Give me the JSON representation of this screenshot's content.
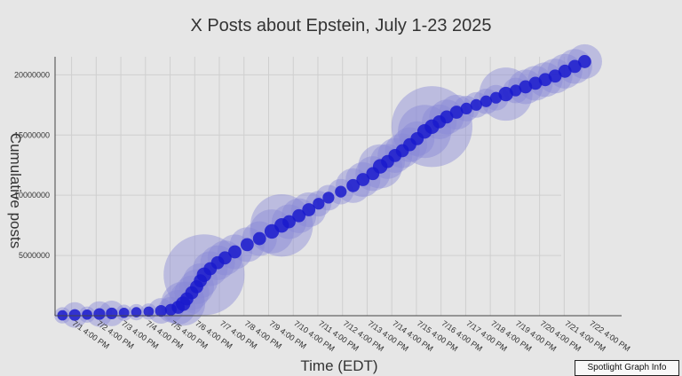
{
  "chart_data": {
    "type": "scatter",
    "title": "X Posts about Epstein, July 1-23 2025",
    "xlabel": "Time (EDT)",
    "ylabel": "Cumulative posts",
    "y_ticks": [
      5000000,
      10000000,
      15000000,
      20000000
    ],
    "y_tick_labels": [
      "5000000",
      "10000000",
      "15000000",
      "20000000"
    ],
    "x_tick_labels": [
      "7/1 4:00 PM",
      "7/2 4:00 PM",
      "7/3 4:00 PM",
      "7/4 4:00 PM",
      "7/5 4:00 PM",
      "7/6 4:00 PM",
      "7/7 4:00 PM",
      "7/8 4:00 PM",
      "7/9 4:00 PM",
      "7/10 4:00 PM",
      "7/11 4:00 PM",
      "7/12 4:00 PM",
      "7/13 4:00 PM",
      "7/14 4:00 PM",
      "7/15 4:00 PM",
      "7/16 4:00 PM",
      "7/17 4:00 PM",
      "7/18 4:00 PM",
      "7/19 4:00 PM",
      "7/20 4:00 PM",
      "7/21 4:00 PM",
      "7/22 4:00 PM"
    ],
    "x_range_days": [
      0,
      23
    ],
    "ylim": [
      0,
      21500000
    ],
    "grid": true,
    "marker_color": "#1a1acc",
    "halo_color": "#8a8ad6",
    "points": [
      {
        "t": 0.3,
        "y": 30000,
        "s": 1
      },
      {
        "t": 0.8,
        "y": 60000,
        "s": 2
      },
      {
        "t": 1.3,
        "y": 90000,
        "s": 1
      },
      {
        "t": 1.8,
        "y": 140000,
        "s": 2
      },
      {
        "t": 2.3,
        "y": 190000,
        "s": 2
      },
      {
        "t": 2.8,
        "y": 240000,
        "s": 1
      },
      {
        "t": 3.3,
        "y": 290000,
        "s": 1
      },
      {
        "t": 3.8,
        "y": 340000,
        "s": 1
      },
      {
        "t": 4.3,
        "y": 400000,
        "s": 2
      },
      {
        "t": 4.7,
        "y": 500000,
        "s": 2
      },
      {
        "t": 5.0,
        "y": 700000,
        "s": 3
      },
      {
        "t": 5.2,
        "y": 1000000,
        "s": 4
      },
      {
        "t": 5.35,
        "y": 1400000,
        "s": 3
      },
      {
        "t": 5.55,
        "y": 1900000,
        "s": 3
      },
      {
        "t": 5.75,
        "y": 2400000,
        "s": 3
      },
      {
        "t": 5.9,
        "y": 2900000,
        "s": 3
      },
      {
        "t": 6.05,
        "y": 3400000,
        "s": 8
      },
      {
        "t": 6.3,
        "y": 3900000,
        "s": 3
      },
      {
        "t": 6.6,
        "y": 4400000,
        "s": 3
      },
      {
        "t": 6.9,
        "y": 4800000,
        "s": 3
      },
      {
        "t": 7.3,
        "y": 5300000,
        "s": 3
      },
      {
        "t": 7.8,
        "y": 5900000,
        "s": 3
      },
      {
        "t": 8.3,
        "y": 6400000,
        "s": 3
      },
      {
        "t": 8.8,
        "y": 7000000,
        "s": 4
      },
      {
        "t": 9.2,
        "y": 7500000,
        "s": 6
      },
      {
        "t": 9.5,
        "y": 7800000,
        "s": 3
      },
      {
        "t": 9.9,
        "y": 8300000,
        "s": 3
      },
      {
        "t": 10.3,
        "y": 8800000,
        "s": 3
      },
      {
        "t": 10.7,
        "y": 9300000,
        "s": 2
      },
      {
        "t": 11.1,
        "y": 9800000,
        "s": 2
      },
      {
        "t": 11.6,
        "y": 10300000,
        "s": 2
      },
      {
        "t": 12.1,
        "y": 10800000,
        "s": 3
      },
      {
        "t": 12.5,
        "y": 11300000,
        "s": 3
      },
      {
        "t": 12.9,
        "y": 11800000,
        "s": 3
      },
      {
        "t": 13.2,
        "y": 12400000,
        "s": 4
      },
      {
        "t": 13.5,
        "y": 12800000,
        "s": 3
      },
      {
        "t": 13.8,
        "y": 13300000,
        "s": 3
      },
      {
        "t": 14.1,
        "y": 13700000,
        "s": 3
      },
      {
        "t": 14.4,
        "y": 14200000,
        "s": 3
      },
      {
        "t": 14.7,
        "y": 14700000,
        "s": 3
      },
      {
        "t": 15.0,
        "y": 15300000,
        "s": 5
      },
      {
        "t": 15.3,
        "y": 15700000,
        "s": 8
      },
      {
        "t": 15.6,
        "y": 16100000,
        "s": 3
      },
      {
        "t": 15.9,
        "y": 16500000,
        "s": 3
      },
      {
        "t": 16.3,
        "y": 16900000,
        "s": 3
      },
      {
        "t": 16.7,
        "y": 17200000,
        "s": 2
      },
      {
        "t": 17.1,
        "y": 17500000,
        "s": 2
      },
      {
        "t": 17.5,
        "y": 17800000,
        "s": 2
      },
      {
        "t": 17.9,
        "y": 18100000,
        "s": 2
      },
      {
        "t": 18.3,
        "y": 18400000,
        "s": 5
      },
      {
        "t": 18.7,
        "y": 18700000,
        "s": 2
      },
      {
        "t": 19.1,
        "y": 19000000,
        "s": 3
      },
      {
        "t": 19.5,
        "y": 19300000,
        "s": 3
      },
      {
        "t": 19.9,
        "y": 19600000,
        "s": 3
      },
      {
        "t": 20.3,
        "y": 19900000,
        "s": 3
      },
      {
        "t": 20.7,
        "y": 20300000,
        "s": 3
      },
      {
        "t": 21.1,
        "y": 20700000,
        "s": 3
      },
      {
        "t": 21.5,
        "y": 21100000,
        "s": 3
      }
    ]
  },
  "ui": {
    "info_button_label": "Spotlight Graph Info"
  }
}
